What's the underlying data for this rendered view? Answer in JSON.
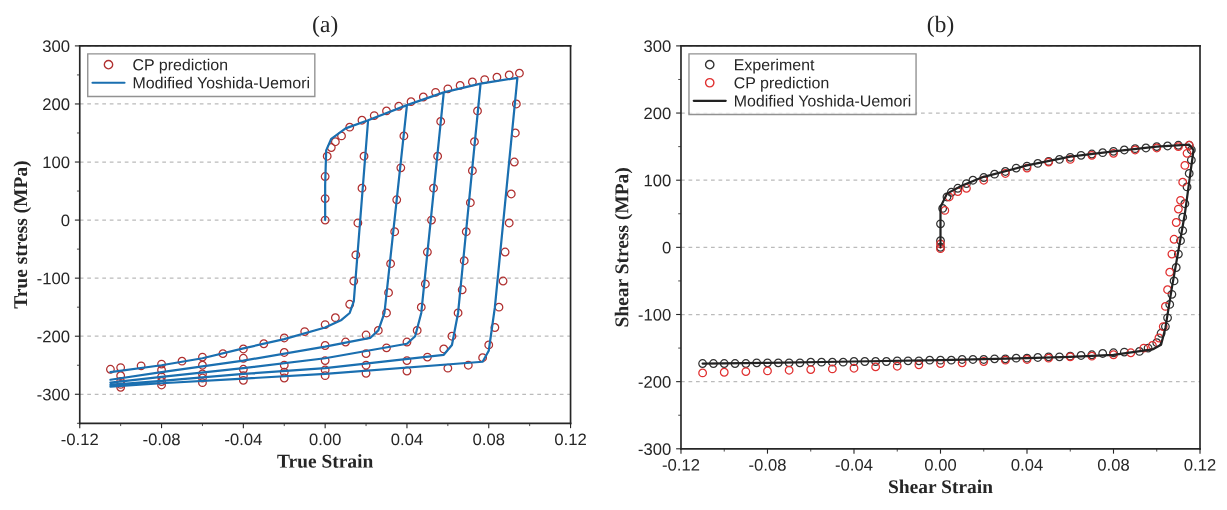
{
  "chart_data": [
    {
      "type": "scatter",
      "title": "(a)",
      "xlabel": "True Strain",
      "ylabel": "True stress (MPa)",
      "xlim": [
        -0.12,
        0.12
      ],
      "ylim": [
        -350,
        300
      ],
      "xticks": [
        {
          "value": -0.12,
          "label": "-0.12"
        },
        {
          "value": -0.08,
          "label": "-0.08"
        },
        {
          "value": -0.04,
          "label": "-0.04"
        },
        {
          "value": 0,
          "label": "0.00"
        },
        {
          "value": 0.04,
          "label": "0.04"
        },
        {
          "value": 0.08,
          "label": "0.08"
        },
        {
          "value": 0.12,
          "label": "0.12"
        }
      ],
      "yticks": [
        -300,
        -200,
        -100,
        0,
        100,
        200,
        300
      ],
      "grid": "y",
      "legend": "top left",
      "series": [
        {
          "name": "CP prediction",
          "type": "scatter",
          "marker": "circle",
          "color": "#b03030",
          "x": [
            0,
            0,
            0,
            0.001,
            0.003,
            0.005,
            0.008,
            0.012,
            0.018,
            0.024,
            0.03,
            0.036,
            0.042,
            0.048,
            0.054,
            0.06,
            0.066,
            0.072,
            0.078,
            0.084,
            0.09,
            0.095,
            0.019,
            0.018,
            0.016,
            0.015,
            0.014,
            0.012,
            0.005,
            0,
            -0.01,
            -0.02,
            -0.03,
            -0.04,
            -0.05,
            -0.06,
            -0.07,
            -0.08,
            -0.09,
            -0.1,
            -0.105,
            0.0385,
            0.037,
            0.035,
            0.034,
            0.032,
            0.031,
            0.03,
            0.026,
            0.02,
            0.01,
            0,
            -0.02,
            -0.04,
            -0.06,
            -0.08,
            -0.1,
            0.0565,
            0.055,
            0.053,
            0.052,
            0.05,
            0.049,
            0.047,
            0.045,
            0.04,
            0.03,
            0.02,
            0,
            -0.02,
            -0.04,
            -0.06,
            -0.08,
            -0.1,
            0.0745,
            0.073,
            0.072,
            0.071,
            0.069,
            0.068,
            0.067,
            0.065,
            0.062,
            0.058,
            0.05,
            0.04,
            0.02,
            0,
            -0.02,
            -0.04,
            -0.06,
            -0.08,
            -0.1,
            0.0935,
            0.093,
            0.0925,
            0.091,
            0.09,
            0.088,
            0.087,
            0.085,
            0.083,
            0.08,
            0.077,
            0.07,
            0.06,
            0.04,
            0.02,
            0,
            -0.02,
            -0.04,
            -0.06,
            -0.08,
            -0.1
          ],
          "values": [
            0,
            37,
            75,
            110,
            125,
            135,
            145,
            160,
            172,
            180,
            188,
            196,
            204,
            212,
            220,
            226,
            232,
            238,
            242,
            246,
            250,
            253,
            110,
            55,
            -5,
            -60,
            -105,
            -145,
            -168,
            -180,
            -192,
            -203,
            -213,
            -222,
            -230,
            -236,
            -243,
            -248,
            -251,
            -254,
            -257,
            145,
            90,
            35,
            -20,
            -75,
            -125,
            -160,
            -190,
            -198,
            -210,
            -216,
            -228,
            -238,
            -250,
            -258,
            -268,
            170,
            110,
            55,
            0,
            -55,
            -110,
            -150,
            -190,
            -210,
            -220,
            -230,
            -242,
            -250,
            -257,
            -265,
            -270,
            -278,
            188,
            135,
            85,
            30,
            -20,
            -70,
            -120,
            -160,
            -200,
            -222,
            -236,
            -242,
            -250,
            -258,
            -262,
            -268,
            -272,
            -278,
            -283,
            200,
            150,
            100,
            45,
            -5,
            -55,
            -105,
            -150,
            -185,
            -215,
            -237,
            -250,
            -255,
            -260,
            -264,
            -268,
            -272,
            -276,
            -280,
            -284,
            -288
          ]
        },
        {
          "name": "Modified Yoshida-Uemori",
          "type": "line",
          "color": "#1a6fb0",
          "x": [
            0,
            0,
            0.0005,
            0.003,
            0.01,
            0.021,
            0.014,
            0.012,
            0.008,
            0,
            -0.02,
            -0.04,
            -0.06,
            -0.08,
            -0.105,
            null,
            0,
            0,
            0.0005,
            0.003,
            0.01,
            0.021,
            0.04,
            0.029,
            0.026,
            0.022,
            0,
            -0.04,
            -0.08,
            -0.105,
            null,
            0.04,
            0.058,
            0.047,
            0.044,
            0.04,
            0,
            -0.04,
            -0.08,
            -0.105,
            null,
            0.058,
            0.076,
            0.065,
            0.062,
            0.058,
            0,
            -0.04,
            -0.08,
            -0.105,
            null,
            0.076,
            0.094,
            0.083,
            0.08,
            0.077,
            0,
            -0.04,
            -0.08,
            -0.105
          ],
          "values": [
            0,
            60,
            120,
            140,
            158,
            172,
            -140,
            -160,
            -172,
            -185,
            -205,
            -221,
            -238,
            -250,
            -262,
            null,
            0,
            60,
            120,
            140,
            158,
            172,
            198,
            -160,
            -190,
            -203,
            -218,
            -242,
            -262,
            -275,
            null,
            198,
            220,
            -160,
            -200,
            -213,
            -238,
            -255,
            -270,
            -280,
            null,
            220,
            235,
            -160,
            -215,
            -232,
            -255,
            -265,
            -277,
            -284,
            null,
            235,
            245,
            -150,
            -225,
            -244,
            -265,
            -273,
            -281,
            -287
          ]
        }
      ]
    },
    {
      "type": "scatter",
      "title": "(b)",
      "xlabel": "Shear Strain",
      "ylabel": "Shear Stress (MPa)",
      "xlim": [
        -0.12,
        0.12
      ],
      "ylim": [
        -300,
        300
      ],
      "xticks": [
        {
          "value": -0.12,
          "label": "-0.12"
        },
        {
          "value": -0.08,
          "label": "-0.08"
        },
        {
          "value": -0.04,
          "label": "-0.04"
        },
        {
          "value": 0,
          "label": "0.00"
        },
        {
          "value": 0.04,
          "label": "0.04"
        },
        {
          "value": 0.08,
          "label": "0.08"
        },
        {
          "value": 0.12,
          "label": "0.12"
        }
      ],
      "yticks": [
        -300,
        -200,
        -100,
        0,
        100,
        200,
        300
      ],
      "grid": "y",
      "legend": "top left",
      "series": [
        {
          "name": "Experiment",
          "type": "scatter",
          "marker": "circle",
          "color": "#333333",
          "x": [
            0,
            0,
            0,
            0.001,
            0.003,
            0.005,
            0.008,
            0.012,
            0.015,
            0.02,
            0.025,
            0.03,
            0.035,
            0.04,
            0.045,
            0.05,
            0.055,
            0.06,
            0.065,
            0.07,
            0.075,
            0.08,
            0.085,
            0.09,
            0.095,
            0.1,
            0.105,
            0.11,
            0.115,
            0.116,
            0.116,
            0.115,
            0.114,
            0.113,
            0.112,
            0.112,
            0.111,
            0.11,
            0.109,
            0.108,
            0.107,
            0.106,
            0.105,
            0.104,
            0.102,
            0.1,
            0.096,
            0.092,
            0.085,
            0.08,
            0.075,
            0.07,
            0.065,
            0.06,
            0.055,
            0.05,
            0.045,
            0.04,
            0.035,
            0.03,
            0.025,
            0.02,
            0.015,
            0.01,
            0.005,
            0,
            -0.005,
            -0.01,
            -0.015,
            -0.02,
            -0.025,
            -0.03,
            -0.035,
            -0.04,
            -0.045,
            -0.05,
            -0.055,
            -0.06,
            -0.065,
            -0.07,
            -0.075,
            -0.08,
            -0.085,
            -0.09,
            -0.095,
            -0.1,
            -0.105,
            -0.11
          ],
          "values": [
            0,
            10,
            35,
            58,
            75,
            82,
            88,
            95,
            100,
            104,
            109,
            113,
            118,
            121,
            125,
            128,
            131,
            134,
            137,
            139,
            141,
            143,
            145,
            147,
            148,
            150,
            151,
            152,
            152,
            145,
            130,
            110,
            90,
            65,
            45,
            25,
            10,
            -10,
            -30,
            -50,
            -70,
            -85,
            -105,
            -118,
            -128,
            -142,
            -150,
            -155,
            -156,
            -157,
            -158,
            -160,
            -161,
            -162,
            -163,
            -163,
            -164,
            -165,
            -165,
            -166,
            -166,
            -167,
            -167,
            -167,
            -168,
            -168,
            -168,
            -169,
            -169,
            -169,
            -170,
            -170,
            -170,
            -170,
            -171,
            -171,
            -171,
            -171,
            -172,
            -172,
            -172,
            -172,
            -172,
            -173,
            -173,
            -173,
            -173,
            -173
          ]
        },
        {
          "name": "CP prediction",
          "type": "scatter",
          "marker": "circle",
          "color": "#e03030",
          "x": [
            0,
            0,
            0.002,
            0.004,
            0.008,
            0.012,
            0.02,
            0.03,
            0.04,
            0.05,
            0.06,
            0.07,
            0.08,
            0.09,
            0.1,
            0.11,
            0.115,
            0.114,
            0.113,
            0.112,
            0.111,
            0.11,
            0.109,
            0.108,
            0.107,
            0.106,
            0.105,
            0.104,
            0.103,
            0.101,
            0.098,
            0.094,
            0.088,
            0.08,
            0.07,
            0.06,
            0.05,
            0.04,
            0.03,
            0.02,
            0.01,
            0,
            -0.01,
            -0.02,
            -0.03,
            -0.04,
            -0.05,
            -0.06,
            -0.07,
            -0.08,
            -0.09,
            -0.1,
            -0.11
          ],
          "values": [
            -2,
            5,
            55,
            75,
            83,
            88,
            100,
            110,
            118,
            127,
            131,
            137,
            140,
            145,
            148,
            150,
            152,
            140,
            122,
            97,
            70,
            57,
            37,
            12,
            -10,
            -37,
            -63,
            -88,
            -118,
            -135,
            -146,
            -150,
            -157,
            -160,
            -162,
            -163,
            -165,
            -167,
            -168,
            -170,
            -172,
            -173,
            -175,
            -177,
            -178,
            -180,
            -181,
            -182,
            -183,
            -184,
            -185,
            -186,
            -187
          ]
        },
        {
          "name": "Modified Yoshida-Uemori",
          "type": "line",
          "color": "#222222",
          "x": [
            0,
            0,
            0.003,
            0.01,
            0.02,
            0.04,
            0.06,
            0.08,
            0.1,
            0.115,
            0.117,
            0.113,
            0.107,
            0.104,
            0.102,
            0.098,
            0.08,
            0.06,
            0.04,
            0,
            -0.04,
            -0.08,
            -0.11
          ],
          "values": [
            0,
            60,
            80,
            92,
            105,
            122,
            135,
            143,
            150,
            153,
            145,
            50,
            -60,
            -120,
            -145,
            -152,
            -160,
            -163,
            -165,
            -168,
            -170,
            -172,
            -173
          ]
        }
      ]
    }
  ]
}
